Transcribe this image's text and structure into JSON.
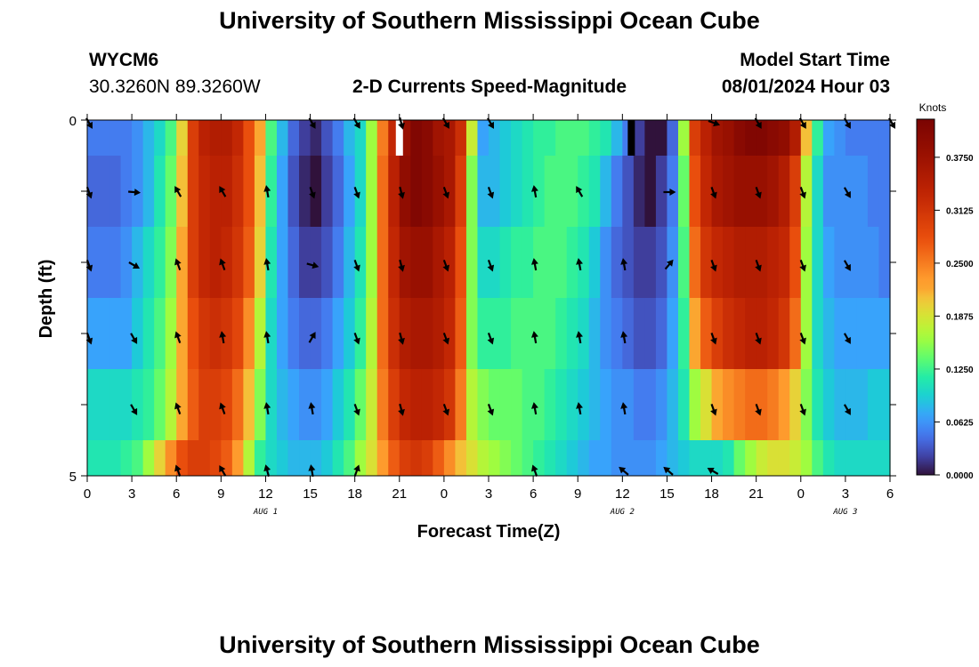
{
  "header": {
    "title_top": "University of Southern Mississippi Ocean Cube",
    "title_bottom": "University of Southern Mississippi Ocean Cube",
    "station_id": "WYCM6",
    "coordinates": "30.3260N  89.3260W",
    "product": "2-D Currents Speed-Magnitude",
    "model_start_label": "Model Start Time",
    "model_start_value": "08/01/2024 Hour 03"
  },
  "chart_data": {
    "type": "heatmap",
    "title": "2-D Currents Speed-Magnitude",
    "xlabel": "Forecast Time(Z)",
    "ylabel": "Depth (ft)",
    "y_ticks": [
      "0",
      "5"
    ],
    "ylim": [
      0,
      5
    ],
    "x_ticks": [
      "0",
      "3",
      "6",
      "9",
      "12",
      "15",
      "18",
      "21",
      "0",
      "3",
      "6",
      "9",
      "12",
      "15",
      "18",
      "21",
      "0",
      "3",
      "6"
    ],
    "date_labels": [
      "AUG 1",
      "AUG 2",
      "AUG 3"
    ],
    "colorbar": {
      "unit": "Knots",
      "ticks": [
        "0.0000",
        "0.0625",
        "0.1250",
        "0.1875",
        "0.2500",
        "0.3125",
        "0.3750"
      ],
      "range": [
        0,
        0.42
      ]
    },
    "hours": 54,
    "depth_rows": 5,
    "speed_knots": [
      [
        0.05,
        0.05,
        0.05,
        0.05,
        0.06,
        0.08,
        0.1,
        0.13,
        0.2,
        0.3,
        0.34,
        0.35,
        0.35,
        0.33,
        0.28,
        0.22,
        0.13,
        0.08,
        0.04,
        0.02,
        0.01,
        0.03,
        0.05,
        0.08,
        0.1,
        0.16,
        0.25,
        0.33,
        0.38,
        0.41,
        0.4,
        0.37,
        0.36,
        0.32,
        0.18,
        0.07,
        0.08,
        0.09,
        0.1,
        0.11,
        0.12,
        0.12,
        0.13,
        0.13,
        0.13,
        0.12,
        0.11,
        0.08,
        0.05,
        0.02,
        0.0,
        0.0,
        0.04,
        0.16,
        0.3,
        0.34,
        0.37,
        0.38,
        0.4,
        0.41,
        0.41,
        0.4,
        0.39,
        0.35,
        0.21,
        0.12,
        0.07,
        0.06,
        0.05,
        0.05,
        0.05,
        0.05
      ],
      [
        0.04,
        0.04,
        0.04,
        0.05,
        0.06,
        0.08,
        0.11,
        0.14,
        0.21,
        0.3,
        0.33,
        0.34,
        0.34,
        0.32,
        0.28,
        0.21,
        0.12,
        0.07,
        0.03,
        0.01,
        0.0,
        0.02,
        0.04,
        0.07,
        0.1,
        0.16,
        0.26,
        0.34,
        0.39,
        0.41,
        0.4,
        0.38,
        0.36,
        0.3,
        0.15,
        0.08,
        0.08,
        0.09,
        0.1,
        0.11,
        0.12,
        0.13,
        0.13,
        0.13,
        0.12,
        0.11,
        0.08,
        0.05,
        0.03,
        0.01,
        0.0,
        0.02,
        0.05,
        0.14,
        0.28,
        0.33,
        0.36,
        0.37,
        0.38,
        0.38,
        0.38,
        0.37,
        0.35,
        0.3,
        0.17,
        0.1,
        0.06,
        0.06,
        0.06,
        0.06,
        0.05,
        0.05
      ],
      [
        0.05,
        0.05,
        0.05,
        0.06,
        0.08,
        0.1,
        0.12,
        0.15,
        0.22,
        0.3,
        0.33,
        0.34,
        0.33,
        0.31,
        0.27,
        0.2,
        0.11,
        0.07,
        0.04,
        0.02,
        0.02,
        0.03,
        0.05,
        0.08,
        0.11,
        0.16,
        0.26,
        0.33,
        0.37,
        0.38,
        0.38,
        0.36,
        0.34,
        0.28,
        0.15,
        0.1,
        0.1,
        0.11,
        0.12,
        0.12,
        0.13,
        0.13,
        0.13,
        0.12,
        0.11,
        0.09,
        0.06,
        0.04,
        0.03,
        0.02,
        0.02,
        0.03,
        0.06,
        0.13,
        0.26,
        0.31,
        0.33,
        0.34,
        0.35,
        0.35,
        0.35,
        0.34,
        0.33,
        0.28,
        0.16,
        0.1,
        0.07,
        0.06,
        0.06,
        0.06,
        0.06,
        0.05
      ],
      [
        0.07,
        0.07,
        0.07,
        0.07,
        0.09,
        0.11,
        0.13,
        0.16,
        0.22,
        0.28,
        0.31,
        0.32,
        0.31,
        0.29,
        0.24,
        0.17,
        0.1,
        0.07,
        0.05,
        0.04,
        0.04,
        0.05,
        0.07,
        0.09,
        0.12,
        0.17,
        0.26,
        0.32,
        0.35,
        0.36,
        0.36,
        0.35,
        0.33,
        0.27,
        0.15,
        0.12,
        0.12,
        0.12,
        0.13,
        0.13,
        0.13,
        0.13,
        0.12,
        0.11,
        0.1,
        0.08,
        0.06,
        0.05,
        0.04,
        0.03,
        0.03,
        0.04,
        0.07,
        0.12,
        0.22,
        0.27,
        0.3,
        0.32,
        0.33,
        0.34,
        0.34,
        0.33,
        0.31,
        0.26,
        0.16,
        0.1,
        0.08,
        0.07,
        0.07,
        0.07,
        0.07,
        0.07
      ],
      [
        0.1,
        0.1,
        0.1,
        0.1,
        0.11,
        0.12,
        0.14,
        0.17,
        0.22,
        0.27,
        0.3,
        0.3,
        0.29,
        0.26,
        0.21,
        0.15,
        0.1,
        0.08,
        0.07,
        0.06,
        0.06,
        0.07,
        0.09,
        0.11,
        0.14,
        0.18,
        0.25,
        0.3,
        0.33,
        0.34,
        0.34,
        0.33,
        0.31,
        0.25,
        0.17,
        0.15,
        0.14,
        0.14,
        0.14,
        0.13,
        0.13,
        0.12,
        0.11,
        0.1,
        0.09,
        0.08,
        0.07,
        0.06,
        0.06,
        0.05,
        0.05,
        0.06,
        0.08,
        0.11,
        0.16,
        0.19,
        0.22,
        0.24,
        0.25,
        0.26,
        0.26,
        0.25,
        0.23,
        0.2,
        0.15,
        0.11,
        0.09,
        0.08,
        0.08,
        0.08,
        0.09,
        0.09
      ]
    ],
    "bottom_row_speed": [
      0.11,
      0.11,
      0.11,
      0.12,
      0.13,
      0.16,
      0.2,
      0.24,
      0.28,
      0.3,
      0.3,
      0.29,
      0.27,
      0.23,
      0.17,
      0.12,
      0.1,
      0.09,
      0.08,
      0.08,
      0.08,
      0.09,
      0.11,
      0.13,
      0.16,
      0.19,
      0.23,
      0.27,
      0.3,
      0.31,
      0.3,
      0.27,
      0.24,
      0.21,
      0.19,
      0.17,
      0.16,
      0.15,
      0.14,
      0.13,
      0.12,
      0.11,
      0.1,
      0.09,
      0.08,
      0.07,
      0.07,
      0.06,
      0.06,
      0.06,
      0.06,
      0.07,
      0.08,
      0.09,
      0.1,
      0.1,
      0.1,
      0.11,
      0.14,
      0.16,
      0.18,
      0.19,
      0.19,
      0.18,
      0.16,
      0.13,
      0.11,
      0.1,
      0.1,
      0.1,
      0.1,
      0.1
    ],
    "arrow_columns_hours": [
      0,
      3,
      6,
      9,
      12,
      15,
      18,
      21,
      24,
      27,
      30,
      33,
      36,
      39,
      42,
      45,
      48,
      51,
      54
    ],
    "arrow_directions_deg": [
      [
        150,
        null,
        null,
        null,
        null,
        150,
        150,
        165,
        150,
        150,
        null,
        null,
        null,
        null,
        110,
        150,
        150,
        150,
        150
      ],
      [
        160,
        95,
        330,
        330,
        350,
        160,
        160,
        165,
        160,
        160,
        350,
        330,
        null,
        90,
        160,
        160,
        160,
        150,
        null
      ],
      [
        160,
        120,
        340,
        340,
        350,
        105,
        160,
        165,
        160,
        160,
        350,
        350,
        350,
        40,
        160,
        160,
        160,
        150,
        null
      ],
      [
        160,
        150,
        340,
        350,
        350,
        30,
        160,
        165,
        160,
        160,
        350,
        350,
        350,
        null,
        160,
        160,
        160,
        150,
        null
      ],
      [
        null,
        150,
        340,
        340,
        350,
        350,
        160,
        165,
        160,
        160,
        350,
        350,
        350,
        null,
        160,
        160,
        160,
        150,
        null
      ],
      [
        null,
        null,
        340,
        330,
        345,
        350,
        20,
        null,
        null,
        null,
        340,
        null,
        310,
        310,
        300,
        null,
        null,
        null,
        null
      ]
    ],
    "missing_marks": [
      {
        "hour": 21,
        "color": "#ffffff"
      },
      {
        "hour": 36.6,
        "color": "#000000"
      }
    ]
  }
}
